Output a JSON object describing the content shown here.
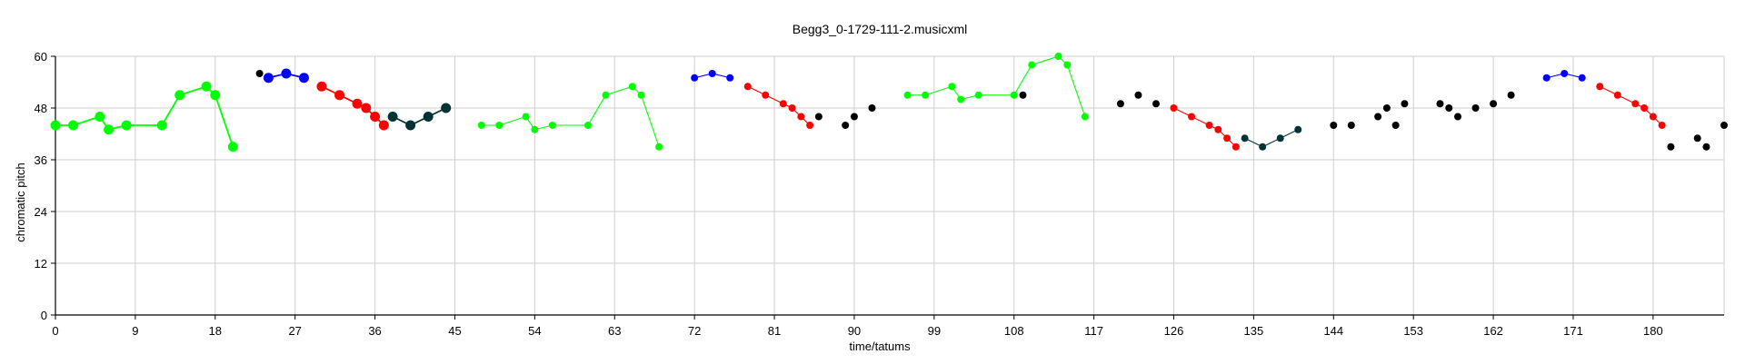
{
  "chart_data": {
    "type": "scatter",
    "title": "Begg3_0-1729-111-2.musicxml",
    "xlabel": "time/tatums",
    "ylabel": "chromatic pitch",
    "xlim": [
      0,
      188
    ],
    "ylim": [
      0,
      60
    ],
    "xticks": [
      0,
      9,
      18,
      27,
      36,
      45,
      54,
      63,
      72,
      81,
      90,
      99,
      108,
      117,
      126,
      135,
      144,
      153,
      162,
      171,
      180
    ],
    "yticks": [
      0,
      12,
      24,
      36,
      48,
      60
    ],
    "grid": true,
    "series": [
      {
        "color": "#00ff00",
        "connected": true,
        "size": "large",
        "points": [
          [
            0,
            44
          ],
          [
            2,
            44
          ],
          [
            5,
            46
          ],
          [
            6,
            43
          ],
          [
            8,
            44
          ],
          [
            12,
            44
          ],
          [
            14,
            51
          ],
          [
            17,
            53
          ],
          [
            18,
            51
          ],
          [
            20,
            39
          ]
        ]
      },
      {
        "color": "#000000",
        "connected": false,
        "size": "small",
        "points": [
          [
            23,
            56
          ]
        ]
      },
      {
        "color": "#0000ff",
        "connected": true,
        "size": "large",
        "points": [
          [
            24,
            55
          ],
          [
            26,
            56
          ],
          [
            28,
            55
          ]
        ]
      },
      {
        "color": "#ff0000",
        "connected": true,
        "size": "large",
        "points": [
          [
            30,
            53
          ],
          [
            32,
            51
          ],
          [
            34,
            49
          ],
          [
            35,
            48
          ],
          [
            36,
            46
          ],
          [
            37,
            44
          ]
        ]
      },
      {
        "color": "#003333",
        "connected": true,
        "size": "large",
        "points": [
          [
            38,
            46
          ],
          [
            40,
            44
          ],
          [
            42,
            46
          ],
          [
            44,
            48
          ]
        ]
      },
      {
        "color": "#00ff00",
        "connected": true,
        "size": "small",
        "points": [
          [
            48,
            44
          ],
          [
            50,
            44
          ],
          [
            53,
            46
          ],
          [
            54,
            43
          ],
          [
            56,
            44
          ],
          [
            60,
            44
          ],
          [
            62,
            51
          ],
          [
            65,
            53
          ],
          [
            66,
            51
          ],
          [
            68,
            39
          ]
        ]
      },
      {
        "color": "#0000ff",
        "connected": true,
        "size": "small",
        "points": [
          [
            72,
            55
          ],
          [
            74,
            56
          ],
          [
            76,
            55
          ]
        ]
      },
      {
        "color": "#ff0000",
        "connected": true,
        "size": "small",
        "points": [
          [
            78,
            53
          ],
          [
            80,
            51
          ],
          [
            82,
            49
          ],
          [
            83,
            48
          ],
          [
            84,
            46
          ],
          [
            85,
            44
          ]
        ]
      },
      {
        "color": "#000000",
        "connected": false,
        "size": "small",
        "points": [
          [
            86,
            46
          ],
          [
            89,
            44
          ],
          [
            90,
            46
          ],
          [
            92,
            48
          ]
        ]
      },
      {
        "color": "#00ff00",
        "connected": true,
        "size": "small",
        "points": [
          [
            96,
            51
          ],
          [
            98,
            51
          ],
          [
            101,
            53
          ],
          [
            102,
            50
          ],
          [
            104,
            51
          ],
          [
            108,
            51
          ],
          [
            110,
            58
          ],
          [
            113,
            60
          ],
          [
            114,
            58
          ],
          [
            116,
            46
          ]
        ]
      },
      {
        "color": "#000000",
        "connected": false,
        "size": "small",
        "points": [
          [
            109,
            51
          ],
          [
            120,
            49
          ],
          [
            122,
            51
          ],
          [
            124,
            49
          ]
        ]
      },
      {
        "color": "#ff0000",
        "connected": true,
        "size": "small",
        "points": [
          [
            126,
            48
          ],
          [
            128,
            46
          ],
          [
            130,
            44
          ],
          [
            131,
            43
          ],
          [
            132,
            41
          ],
          [
            133,
            39
          ]
        ]
      },
      {
        "color": "#003333",
        "connected": true,
        "size": "small",
        "points": [
          [
            134,
            41
          ],
          [
            136,
            39
          ],
          [
            138,
            41
          ],
          [
            140,
            43
          ]
        ]
      },
      {
        "color": "#000000",
        "connected": false,
        "size": "small",
        "points": [
          [
            144,
            44
          ],
          [
            146,
            44
          ],
          [
            149,
            46
          ],
          [
            150,
            48
          ],
          [
            151,
            44
          ],
          [
            152,
            49
          ],
          [
            156,
            49
          ],
          [
            157,
            48
          ],
          [
            158,
            46
          ],
          [
            160,
            48
          ],
          [
            162,
            49
          ],
          [
            164,
            51
          ]
        ]
      },
      {
        "color": "#0000ff",
        "connected": true,
        "size": "small",
        "points": [
          [
            168,
            55
          ],
          [
            170,
            56
          ],
          [
            172,
            55
          ]
        ]
      },
      {
        "color": "#ff0000",
        "connected": true,
        "size": "small",
        "points": [
          [
            174,
            53
          ],
          [
            176,
            51
          ],
          [
            178,
            49
          ],
          [
            179,
            48
          ],
          [
            180,
            46
          ],
          [
            181,
            44
          ]
        ]
      },
      {
        "color": "#000000",
        "connected": false,
        "size": "small",
        "points": [
          [
            182,
            39
          ],
          [
            185,
            41
          ],
          [
            186,
            39
          ],
          [
            188,
            44
          ]
        ]
      }
    ]
  }
}
